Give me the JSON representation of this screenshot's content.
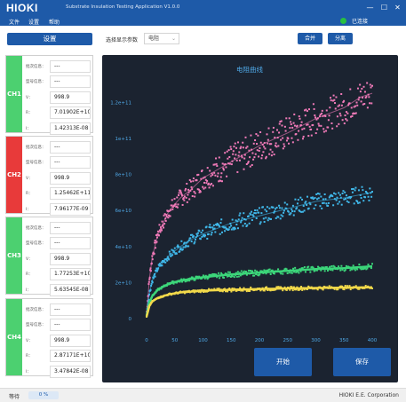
{
  "app": {
    "logo": "HIOKI",
    "title": "Substrate Insulation Testing Application V1.0.0",
    "min_glyph": "—",
    "max_glyph": "☐",
    "close_glyph": "✕"
  },
  "menu": {
    "items": [
      "文件",
      "设置",
      "帮助"
    ]
  },
  "connection": {
    "status": "已连接",
    "color": "#28c040"
  },
  "toolbar": {
    "settings_label": "设置",
    "param_label": "选择显示参数",
    "param_value": "电阻",
    "merge_label": "合并",
    "split_label": "分离"
  },
  "row_labels": {
    "batch": "批次信息：",
    "model": "型号信息：",
    "v": "V：",
    "r": "R：",
    "i": "I："
  },
  "channels": [
    {
      "id": "CH1",
      "color": "#4cd070",
      "batch": "---",
      "model": "---",
      "v": "998.9",
      "r": "7.01902E+10",
      "i": "1.42313E-08"
    },
    {
      "id": "CH2",
      "color": "#e83a3a",
      "batch": "---",
      "model": "---",
      "v": "998.9",
      "r": "1.25462E+11",
      "i": "7.96177E-09"
    },
    {
      "id": "CH3",
      "color": "#4cd070",
      "batch": "---",
      "model": "---",
      "v": "998.9",
      "r": "1.77253E+10",
      "i": "5.63545E-08"
    },
    {
      "id": "CH4",
      "color": "#4cd070",
      "batch": "---",
      "model": "---",
      "v": "998.9",
      "r": "2.87171E+10",
      "i": "3.47842E-08"
    }
  ],
  "actions": {
    "start_label": "开始",
    "save_label": "保存"
  },
  "status": {
    "label": "等待",
    "progress_text": "0 %",
    "progress": 0,
    "company": "HIOKI E.E. Corporation"
  },
  "chart_data": {
    "type": "scatter",
    "title": "电阻曲线",
    "xlim": [
      0,
      400
    ],
    "ylim": [
      0,
      130000000000
    ],
    "x_ticks": [
      0,
      50,
      100,
      150,
      200,
      250,
      300,
      350,
      400
    ],
    "y_ticks": [
      {
        "value": 0,
        "label": "0"
      },
      {
        "value": 20000000000,
        "label": "2e+10"
      },
      {
        "value": 40000000000,
        "label": "4e+10"
      },
      {
        "value": 60000000000,
        "label": "6e+10"
      },
      {
        "value": 80000000000,
        "label": "8e+10"
      },
      {
        "value": 100000000000,
        "label": "1e+11"
      },
      {
        "value": 120000000000,
        "label": "1.2e+11"
      }
    ],
    "grid": false,
    "series": [
      {
        "color": "#f07ab8",
        "x": [
          0,
          5,
          10,
          20,
          40,
          60,
          80,
          100,
          150,
          200,
          250,
          300,
          350,
          380,
          390,
          400
        ],
        "y": [
          2000000000,
          22000000000,
          34000000000,
          47000000000,
          60000000000,
          67000000000,
          72000000000,
          78000000000,
          87000000000,
          96000000000,
          103000000000,
          111000000000,
          117000000000,
          123000000000,
          124000000000,
          125000000000
        ]
      },
      {
        "color": "#40b8ea",
        "x": [
          0,
          5,
          10,
          20,
          40,
          60,
          80,
          100,
          150,
          200,
          250,
          300,
          350,
          400
        ],
        "y": [
          2000000000,
          14000000000,
          21000000000,
          28000000000,
          35000000000,
          40000000000,
          44000000000,
          47000000000,
          53000000000,
          57000000000,
          61000000000,
          65000000000,
          67000000000,
          70000000000
        ]
      },
      {
        "color": "#3cd67a",
        "x": [
          0,
          5,
          10,
          20,
          40,
          60,
          80,
          100,
          150,
          200,
          250,
          300,
          350,
          400
        ],
        "y": [
          1500000000,
          9000000000,
          12500000000,
          16000000000,
          19500000000,
          21000000000,
          22000000000,
          23000000000,
          24500000000,
          25500000000,
          26500000000,
          27500000000,
          28000000000,
          29000000000
        ]
      },
      {
        "color": "#f2d94a",
        "x": [
          0,
          5,
          10,
          20,
          40,
          60,
          80,
          100,
          150,
          200,
          250,
          300,
          350,
          400
        ],
        "y": [
          1000000000,
          7000000000,
          9500000000,
          11500000000,
          13500000000,
          14500000000,
          15000000000,
          15500000000,
          16000000000,
          16400000000,
          16700000000,
          17000000000,
          17200000000,
          17400000000
        ]
      }
    ]
  }
}
